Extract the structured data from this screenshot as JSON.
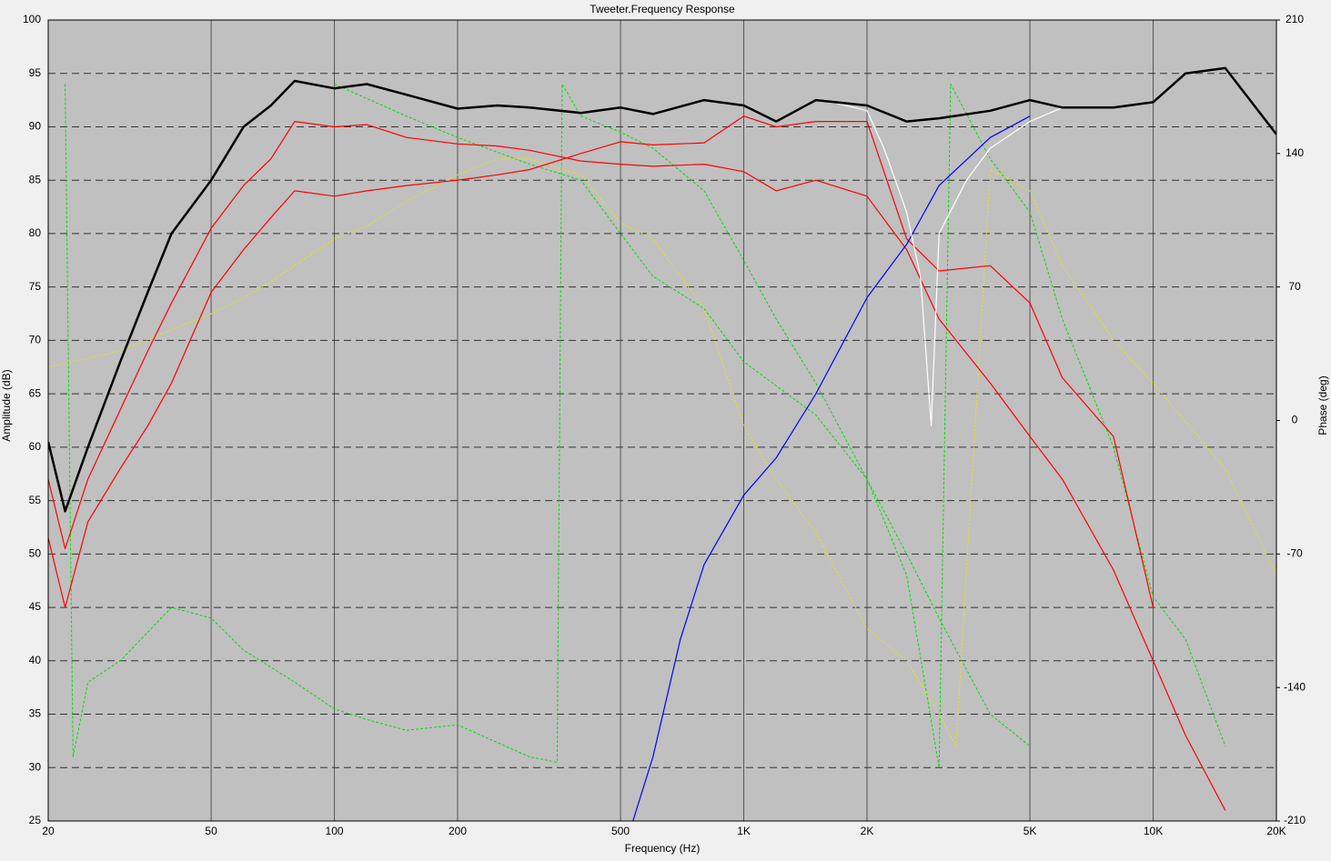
{
  "chart_data": {
    "type": "line",
    "title": "Tweeter.Frequency Response",
    "xlabel": "Frequency (Hz)",
    "ylabel": "Amplitude (dB)",
    "y2label": "Phase (deg)",
    "xscale": "log",
    "xlim": [
      20,
      20000
    ],
    "xticks": [
      20,
      50,
      100,
      200,
      500,
      {
        "value": 1000,
        "label": "1K"
      },
      {
        "value": 2000,
        "label": "2K"
      },
      {
        "value": 5000,
        "label": "5K"
      },
      {
        "value": 10000,
        "label": "10K"
      },
      {
        "value": 20000,
        "label": "20K"
      }
    ],
    "ylim": [
      25,
      100
    ],
    "yticks": [
      25,
      30,
      35,
      40,
      45,
      50,
      55,
      60,
      65,
      70,
      75,
      80,
      85,
      90,
      95,
      100
    ],
    "y2lim": [
      -210,
      210
    ],
    "y2ticks": [
      -210,
      -140,
      -70,
      0,
      70,
      140,
      210
    ],
    "grid": true,
    "series": [
      {
        "color": "#00e000",
        "style": "dashed",
        "x": [
          22,
          23,
          25,
          30,
          40,
          50,
          60,
          80,
          100,
          120,
          150,
          200,
          300,
          350,
          360,
          400,
          500,
          600,
          800,
          1000,
          1200,
          1500,
          2000,
          2500,
          3000,
          3200,
          4000,
          5000,
          6000,
          8000,
          10000,
          12000,
          15000
        ],
        "values": [
          94,
          31,
          38,
          40,
          45,
          44,
          41,
          38,
          35.5,
          34.5,
          33.5,
          34,
          31,
          30.5,
          94,
          91,
          89.5,
          88,
          84,
          77.5,
          72,
          66,
          57,
          48,
          30,
          94,
          87,
          82,
          72,
          60,
          46,
          42,
          32
        ]
      },
      {
        "color": "#00e000",
        "style": "dashed",
        "x": [
          100,
          150,
          200,
          300,
          400,
          500,
          600,
          800,
          1000,
          1500,
          2000,
          2500,
          3000,
          4000,
          5000
        ],
        "values": [
          94,
          91,
          89,
          86.5,
          85,
          80,
          76,
          73,
          68,
          63,
          57,
          50,
          44,
          35,
          32
        ]
      },
      {
        "color": "#e8e800",
        "style": "dotted",
        "x": [
          20,
          30,
          40,
          50,
          60,
          70,
          80,
          100,
          120,
          150,
          200,
          250,
          300,
          400,
          500,
          600,
          800,
          1000,
          1200,
          1500,
          2000,
          2500,
          3000,
          3300,
          4000,
          5000,
          6000,
          8000,
          10000,
          15000,
          20000
        ],
        "values": [
          67.5,
          69,
          71,
          72.5,
          74,
          75.5,
          77,
          79.5,
          80.7,
          83,
          85.5,
          87,
          87,
          85.5,
          81,
          79.5,
          73,
          62,
          57,
          52,
          43,
          40,
          35,
          32,
          86,
          84,
          77,
          70,
          66,
          58,
          48
        ]
      },
      {
        "color": "#ff0000",
        "style": "solid",
        "x": [
          20,
          22,
          25,
          30,
          35,
          40,
          50,
          60,
          70,
          80,
          100,
          120,
          150,
          200,
          250,
          300,
          400,
          500,
          600,
          800,
          1000,
          1200,
          1500,
          2000,
          2500,
          3000,
          4000,
          5000,
          6000,
          8000,
          10000,
          12000,
          15000
        ],
        "values": [
          57,
          50.5,
          57,
          63.5,
          69,
          73.5,
          80.5,
          84.5,
          87,
          90.5,
          90,
          90.2,
          89,
          88.4,
          88.2,
          87.8,
          86.8,
          86.5,
          86.3,
          86.5,
          85.8,
          84,
          85,
          83.5,
          78.5,
          72,
          66,
          61,
          57,
          48.5,
          40,
          33,
          26
        ]
      },
      {
        "color": "#ff0000",
        "style": "solid",
        "x": [
          20,
          22,
          25,
          30,
          35,
          40,
          50,
          60,
          70,
          80,
          100,
          120,
          150,
          200,
          250,
          300,
          400,
          500,
          600,
          800,
          1000,
          1200,
          1500,
          2000,
          2500,
          3000,
          4000,
          5000,
          6000,
          8000,
          10000
        ],
        "values": [
          51.5,
          45,
          53,
          58,
          62,
          66,
          74.5,
          78.5,
          81.5,
          84,
          83.5,
          84,
          84.5,
          85,
          85.5,
          86,
          87.5,
          88.6,
          88.3,
          88.5,
          91,
          90,
          90.5,
          90.5,
          79.5,
          76.5,
          77,
          73.5,
          66.5,
          61,
          45
        ]
      },
      {
        "color": "#0000ff",
        "style": "solid",
        "x": [
          536,
          600,
          700,
          800,
          1000,
          1200,
          1500,
          2000,
          2500,
          3000,
          4000,
          5000
        ],
        "values": [
          25,
          31,
          42,
          49,
          55.5,
          59,
          65,
          74,
          79,
          84.5,
          89,
          91
        ]
      },
      {
        "color": "#ffffff",
        "style": "solid",
        "x": [
          1570,
          2000,
          2200,
          2500,
          2700,
          2870,
          3000,
          3500,
          4000,
          5000,
          6000
        ],
        "values": [
          92.5,
          91.5,
          88,
          82,
          76,
          62,
          80,
          85,
          88,
          90.5,
          91.8
        ]
      },
      {
        "color": "#000000",
        "style": "thick",
        "x": [
          20,
          22,
          25,
          30,
          35,
          40,
          50,
          60,
          70,
          80,
          100,
          120,
          150,
          200,
          250,
          300,
          400,
          500,
          600,
          800,
          1000,
          1200,
          1500,
          2000,
          2500,
          3000,
          4000,
          5000,
          6000,
          8000,
          10000,
          12000,
          15000,
          20000
        ],
        "values": [
          60.5,
          54,
          60,
          68,
          74.5,
          80,
          85,
          90,
          92,
          94.3,
          93.6,
          94,
          93,
          91.7,
          92,
          91.8,
          91.3,
          91.8,
          91.2,
          92.5,
          92,
          90.5,
          92.5,
          92,
          90.5,
          90.8,
          91.5,
          92.5,
          91.8,
          91.8,
          92.3,
          95,
          95.5,
          89.3
        ]
      }
    ]
  }
}
